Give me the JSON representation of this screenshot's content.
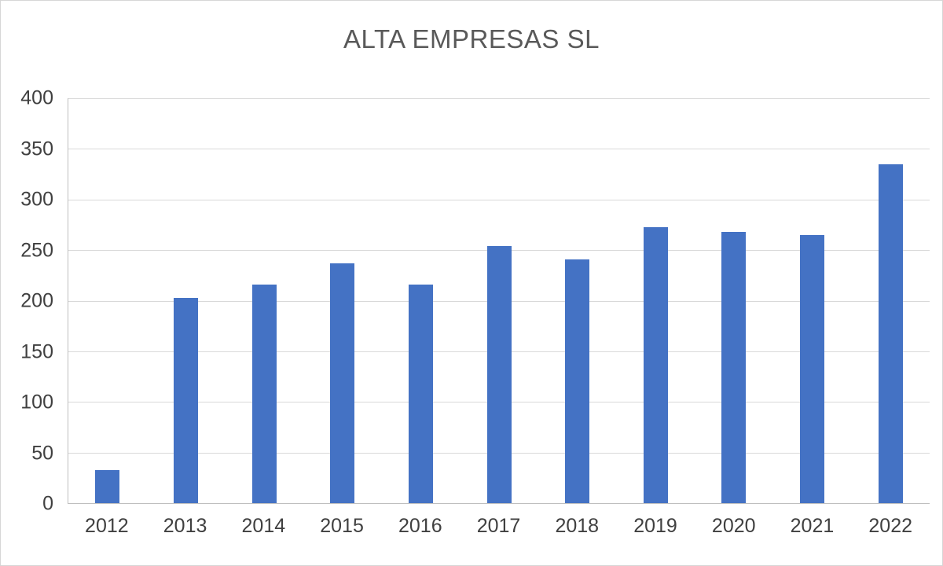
{
  "chart_data": {
    "type": "bar",
    "title": "ALTA EMPRESAS SL",
    "categories": [
      "2012",
      "2013",
      "2014",
      "2015",
      "2016",
      "2017",
      "2018",
      "2019",
      "2020",
      "2021",
      "2022"
    ],
    "values": [
      33,
      203,
      216,
      237,
      216,
      254,
      241,
      273,
      268,
      265,
      335
    ],
    "xlabel": "",
    "ylabel": "",
    "ylim": [
      0,
      400
    ],
    "yticks": [
      0,
      50,
      100,
      150,
      200,
      250,
      300,
      350,
      400
    ],
    "grid": true,
    "legend_position": "none",
    "bar_color": "#4472c4",
    "gridline_color": "#d9d9d9",
    "axis_line_color": "#bfbfbf",
    "title_color": "#595959",
    "tick_label_color": "#404040"
  }
}
